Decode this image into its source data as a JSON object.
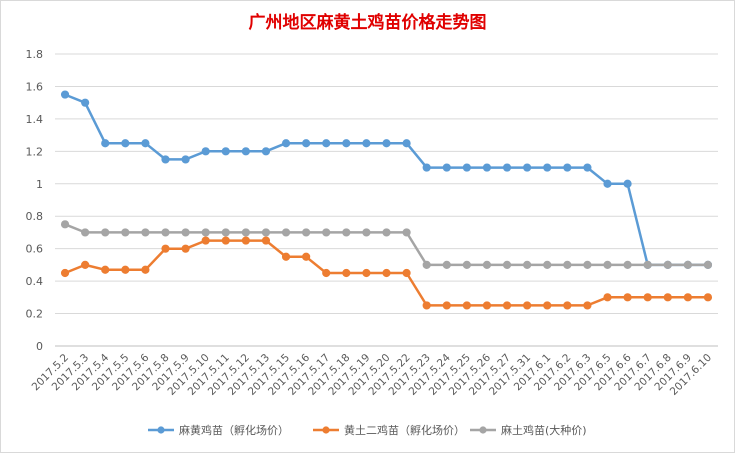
{
  "chart_data": {
    "type": "line",
    "title": "广州地区麻黄土鸡苗价格走势图",
    "xlabel": "",
    "ylabel": "",
    "ylim": [
      0,
      1.8
    ],
    "yticks": [
      "0",
      "0.2",
      "0.4",
      "0.6",
      "0.8",
      "1",
      "1.2",
      "1.4",
      "1.6",
      "1.8"
    ],
    "grid": true,
    "legend_position": "bottom",
    "categories": [
      "2017.5.2",
      "2017.5.3",
      "2017.5.4",
      "2017.5.5",
      "2017.5.6",
      "2017.5.8",
      "2017.5.9",
      "2017.5.10",
      "2017.5.11",
      "2017.5.12",
      "2017.5.13",
      "2017.5.15",
      "2017.5.16",
      "2017.5.17",
      "2017.5.18",
      "2017.5.19",
      "2017.5.20",
      "2017.5.22",
      "2017.5.23",
      "2017.5.24",
      "2017.5.25",
      "2017.5.26",
      "2017.5.27",
      "2017.5.31",
      "2017.6.1",
      "2017.6.2",
      "2017.6.3",
      "2017.6.5",
      "2017.6.6",
      "2017.6.7",
      "2017.6.8",
      "2017.6.9",
      "2017.6.10"
    ],
    "series": [
      {
        "name": "麻黄鸡苗（孵化场价）",
        "color": "#5b9bd5",
        "values": [
          1.55,
          1.5,
          1.25,
          1.25,
          1.25,
          1.15,
          1.15,
          1.2,
          1.2,
          1.2,
          1.2,
          1.25,
          1.25,
          1.25,
          1.25,
          1.25,
          1.25,
          1.25,
          1.1,
          1.1,
          1.1,
          1.1,
          1.1,
          1.1,
          1.1,
          1.1,
          1.1,
          1.0,
          1.0,
          0.5,
          0.5,
          0.5,
          0.5
        ]
      },
      {
        "name": "黄土二鸡苗（孵化场价）",
        "color": "#ed7d31",
        "values": [
          0.45,
          0.5,
          0.47,
          0.47,
          0.47,
          0.6,
          0.6,
          0.65,
          0.65,
          0.65,
          0.65,
          0.55,
          0.55,
          0.45,
          0.45,
          0.45,
          0.45,
          0.45,
          0.25,
          0.25,
          0.25,
          0.25,
          0.25,
          0.25,
          0.25,
          0.25,
          0.25,
          0.3,
          0.3,
          0.3,
          0.3,
          0.3,
          0.3
        ]
      },
      {
        "name": "麻土鸡苗(大种价)",
        "color": "#a5a5a5",
        "values": [
          0.75,
          0.7,
          0.7,
          0.7,
          0.7,
          0.7,
          0.7,
          0.7,
          0.7,
          0.7,
          0.7,
          0.7,
          0.7,
          0.7,
          0.7,
          0.7,
          0.7,
          0.7,
          0.5,
          0.5,
          0.5,
          0.5,
          0.5,
          0.5,
          0.5,
          0.5,
          0.5,
          0.5,
          0.5,
          0.5,
          0.5,
          0.5,
          0.5
        ]
      }
    ]
  }
}
